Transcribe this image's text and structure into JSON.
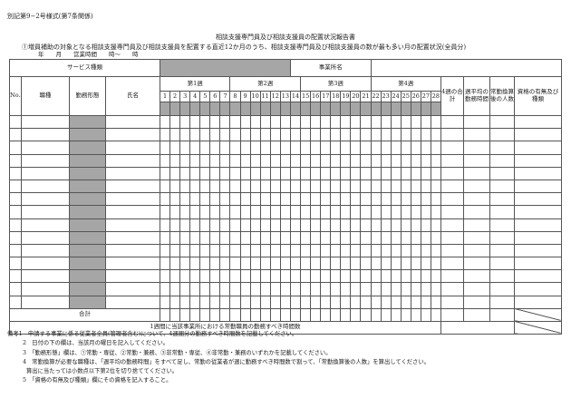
{
  "form_id": "別記第9−2号様式(第7条関係)",
  "title": "相談支援専門員及び相談支援員の配置状況報告書",
  "subtitle": "①増員補助の対象となる相談支援専門員及び相談支援員を配置する直近12か月のうち、相談支援専門員及び相談支援員の数が最も多い月の配置状況(全員分)",
  "date_line": "年　　月　　営業時間　　時〜　　時",
  "table": {
    "service_type_label": "サービス種類",
    "office_name_label": "事業所名",
    "col_no": "No.",
    "col_job": "職種",
    "col_work_style": "勤務形態",
    "col_name": "氏名",
    "weeks": [
      "第1週",
      "第2週",
      "第3週",
      "第4週"
    ],
    "days": [
      "1",
      "2",
      "3",
      "4",
      "5",
      "6",
      "7",
      "8",
      "9",
      "10",
      "11",
      "12",
      "13",
      "14",
      "15",
      "16",
      "17",
      "18",
      "19",
      "20",
      "21",
      "22",
      "23",
      "24",
      "25",
      "26",
      "27",
      "28"
    ],
    "col_4week_total": "4週の合計",
    "col_weekly_avg": "週平均の勤務時間",
    "col_fte_count": "常勤換算後の人数",
    "col_qualification": "資格の有無及び種類",
    "total_label": "合計",
    "weekly_hours_label": "1週間に当該事業所における常勤職員の勤務すべき時間数"
  },
  "notes": [
    "備考1　申請する事業に係る従業者全員(管理者含む)について、4週間分の勤務すべき時間数を記載してください。",
    "2　日付の下の欄は、当該月の曜日を記入してください。",
    "3　「勤務形態」欄は、①常勤・専従、②常勤・兼務、③非常勤・専従、④非常勤・兼務のいずれかを記載してください。",
    "4　常勤換算が必要な職種は、「週平均の勤務時間」をすべて足し、常勤の従業者が週に勤務すべき時間数で割って、「常勤換算後の人数」を算出してください。",
    "算出に当たっては小数点以下第2位を切り捨ててください。",
    "5　「資格の有無及び種類」欄にその資格を記入すること。"
  ],
  "colors": {
    "shaded": "#a6a6a6",
    "border": "#555555"
  }
}
